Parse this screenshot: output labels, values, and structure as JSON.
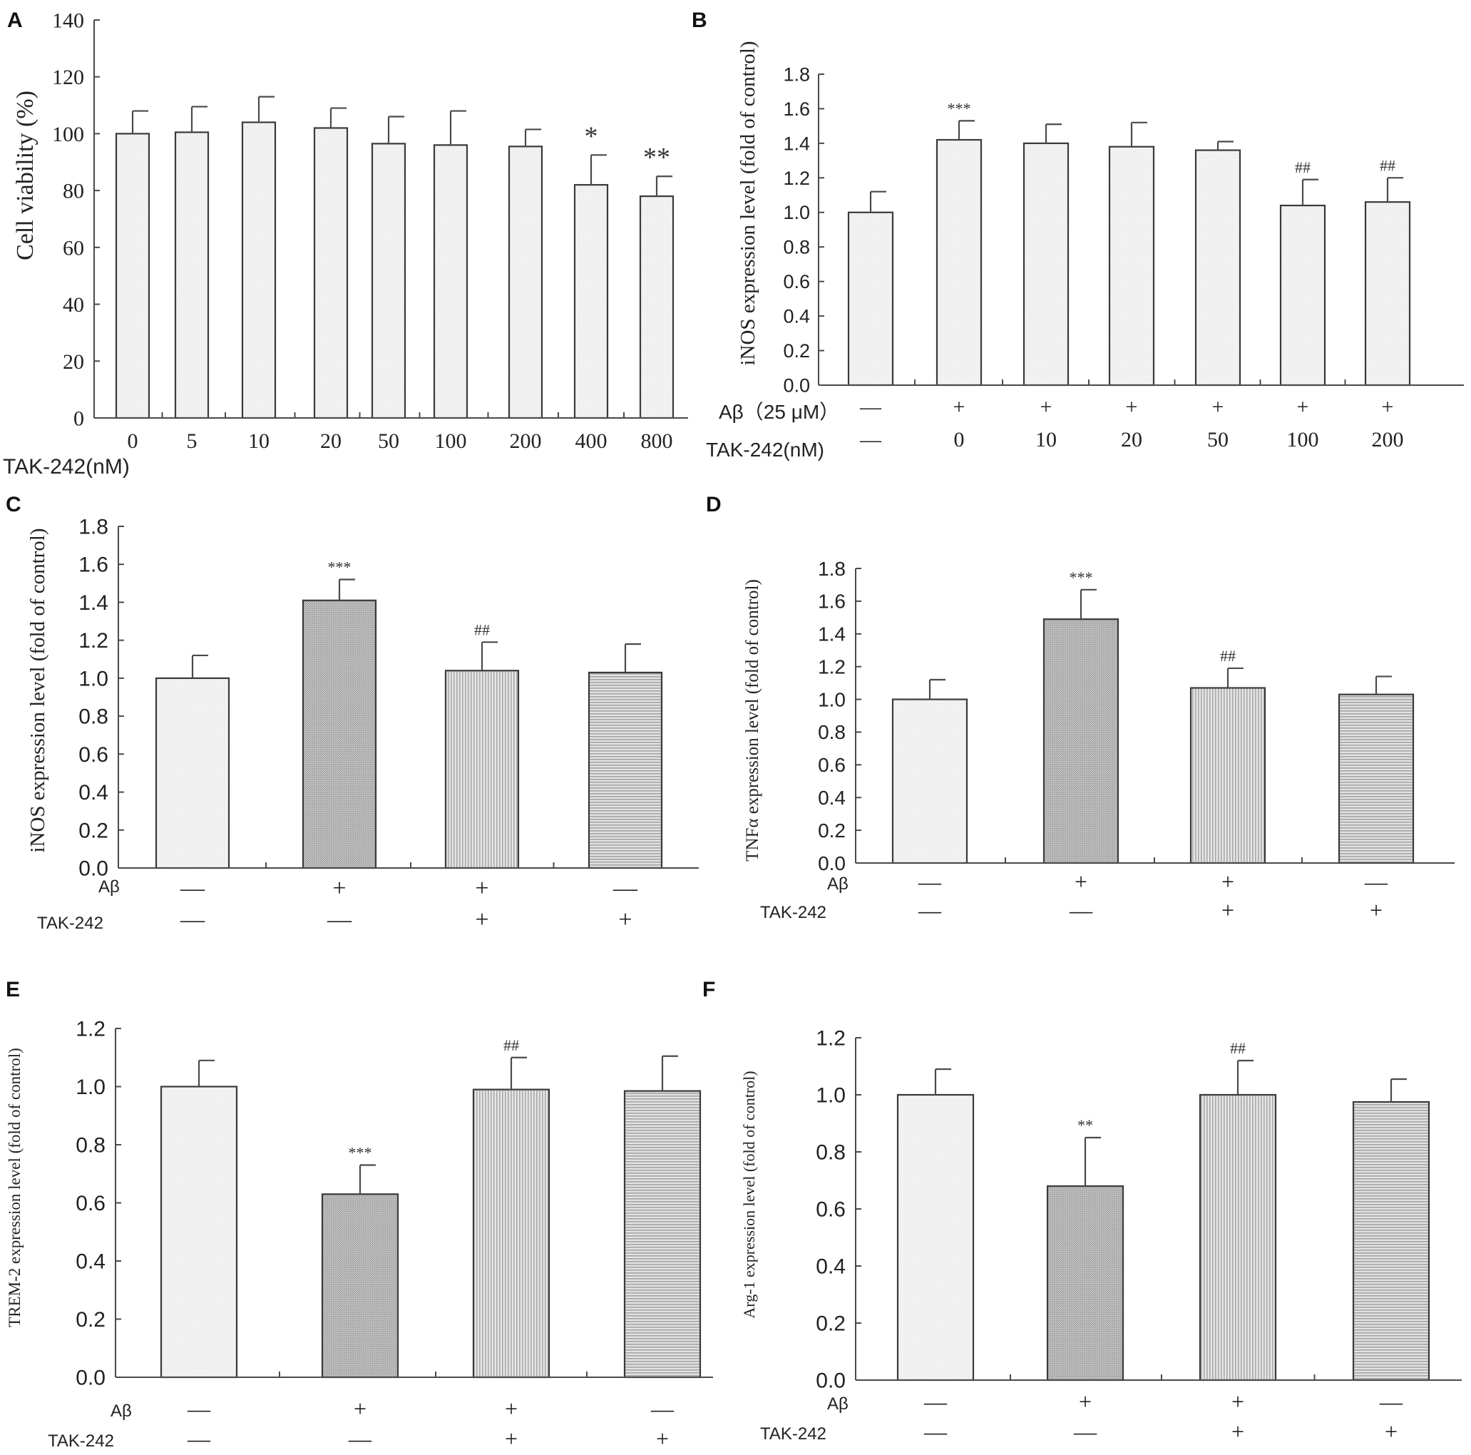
{
  "colors": {
    "bar_light": "#f2f2f2",
    "bar_dark": "#b8b8b8",
    "bar_vstripe": "#c7c7c7",
    "bar_hstripe": "#c2c2c2",
    "axis": "#4a4a4a",
    "text": "#222222"
  },
  "panels": {
    "A": {
      "letter": "A",
      "ylabel": "Cell viability (%)",
      "xlabel": "TAK-242(nM)",
      "yticks": [
        "0",
        "20",
        "40",
        "60",
        "80",
        "100",
        "120",
        "140"
      ],
      "ylim": [
        0,
        140
      ],
      "categories": [
        "0",
        "5",
        "10",
        "20",
        "50",
        "100",
        "200",
        "400",
        "800"
      ],
      "values": [
        100,
        100.5,
        104,
        102,
        96.5,
        96,
        95.5,
        82,
        78
      ],
      "errors": [
        8,
        9,
        9,
        7,
        9.5,
        12,
        6,
        10.5,
        7
      ],
      "marks": [
        "",
        "",
        "",
        "",
        "",
        "",
        "",
        "*",
        "**"
      ]
    },
    "B": {
      "letter": "B",
      "ylabel": "iNOS expression level (fold of control)",
      "yticks": [
        "0.0",
        "0.2",
        "0.4",
        "0.6",
        "0.8",
        "1.0",
        "1.2",
        "1.4",
        "1.6",
        "1.8"
      ],
      "ylim": [
        0,
        1.8
      ],
      "row1_label": "Aβ（25 μM）",
      "row2_label": "TAK-242(nM)",
      "row1": [
        "—",
        "+",
        "+",
        "+",
        "+",
        "+",
        "+"
      ],
      "row2": [
        "—",
        "0",
        "10",
        "20",
        "50",
        "100",
        "200"
      ],
      "values": [
        1.0,
        1.42,
        1.4,
        1.38,
        1.36,
        1.04,
        1.06
      ],
      "errors": [
        0.12,
        0.11,
        0.11,
        0.14,
        0.05,
        0.15,
        0.14
      ],
      "marks": [
        "",
        "***",
        "",
        "",
        "",
        "##",
        "##"
      ]
    },
    "C": {
      "letter": "C",
      "ylabel": "iNOS expression level (fold of control)",
      "yticks": [
        "0.0",
        "0.2",
        "0.4",
        "0.6",
        "0.8",
        "1.0",
        "1.2",
        "1.4",
        "1.6",
        "1.8"
      ],
      "ylim": [
        0,
        1.8
      ],
      "row1_label": "Aβ",
      "row2_label": "TAK-242",
      "row1": [
        "—",
        "+",
        "+",
        "—"
      ],
      "row2": [
        "—",
        "—",
        "+",
        "+"
      ],
      "values": [
        1.0,
        1.41,
        1.04,
        1.03
      ],
      "errors": [
        0.12,
        0.11,
        0.15,
        0.15
      ],
      "marks": [
        "",
        "***",
        "##",
        ""
      ]
    },
    "D": {
      "letter": "D",
      "ylabel": "TNFα expression level (fold of control)",
      "yticks": [
        "0.0",
        "0.2",
        "0.4",
        "0.6",
        "0.8",
        "1.0",
        "1.2",
        "1.4",
        "1.6",
        "1.8"
      ],
      "ylim": [
        0,
        1.8
      ],
      "row1_label": "Aβ",
      "row2_label": "TAK-242",
      "row1": [
        "—",
        "+",
        "+",
        "—"
      ],
      "row2": [
        "—",
        "—",
        "+",
        "+"
      ],
      "values": [
        1.0,
        1.49,
        1.07,
        1.03
      ],
      "errors": [
        0.12,
        0.18,
        0.12,
        0.11
      ],
      "marks": [
        "",
        "***",
        "##",
        ""
      ]
    },
    "E": {
      "letter": "E",
      "ylabel": "TREM-2 expression level (fold of control)",
      "yticks": [
        "0.0",
        "0.2",
        "0.4",
        "0.6",
        "0.8",
        "1.0",
        "1.2"
      ],
      "ylim": [
        0,
        1.2
      ],
      "row1_label": "Aβ",
      "row2_label": "TAK-242",
      "row1": [
        "—",
        "+",
        "+",
        "—"
      ],
      "row2": [
        "—",
        "—",
        "+",
        "+"
      ],
      "values": [
        1.0,
        0.63,
        0.99,
        0.985
      ],
      "errors": [
        0.09,
        0.1,
        0.11,
        0.12
      ],
      "marks": [
        "",
        "***",
        "##",
        ""
      ]
    },
    "F": {
      "letter": "F",
      "ylabel": "Arg-1 expression level (fold of control)",
      "yticks": [
        "0.0",
        "0.2",
        "0.4",
        "0.6",
        "0.8",
        "1.0",
        "1.2"
      ],
      "ylim": [
        0,
        1.2
      ],
      "row1_label": "Aβ",
      "row2_label": "TAK-242",
      "row1": [
        "—",
        "+",
        "+",
        "—"
      ],
      "row2": [
        "—",
        "—",
        "+",
        "+"
      ],
      "values": [
        1.0,
        0.68,
        1.0,
        0.975
      ],
      "errors": [
        0.09,
        0.17,
        0.12,
        0.08
      ],
      "marks": [
        "",
        "**",
        "##",
        ""
      ]
    }
  },
  "chart_data": [
    {
      "panel": "A",
      "type": "bar",
      "title": "",
      "xlabel": "TAK-242(nM)",
      "ylabel": "Cell viability (%)",
      "ylim": [
        0,
        140
      ],
      "categories": [
        "0",
        "5",
        "10",
        "20",
        "50",
        "100",
        "200",
        "400",
        "800"
      ],
      "values": [
        100,
        100.5,
        104,
        102,
        96.5,
        96,
        95.5,
        82,
        78
      ],
      "error": [
        8,
        9,
        9,
        7,
        9.5,
        12,
        6,
        10.5,
        7
      ],
      "annotations": [
        "",
        "",
        "",
        "",
        "",
        "",
        "",
        "*",
        "**"
      ]
    },
    {
      "panel": "B",
      "type": "bar",
      "title": "",
      "xlabel": "Aβ（25 μM） / TAK-242(nM)",
      "ylabel": "iNOS expression level (fold of control)",
      "ylim": [
        0,
        1.8
      ],
      "categories": [
        "— / —",
        "+ / 0",
        "+ / 10",
        "+ / 20",
        "+ / 50",
        "+ / 100",
        "+ / 200"
      ],
      "values": [
        1.0,
        1.42,
        1.4,
        1.38,
        1.36,
        1.04,
        1.06
      ],
      "error": [
        0.12,
        0.11,
        0.11,
        0.14,
        0.05,
        0.15,
        0.14
      ],
      "annotations": [
        "",
        "***",
        "",
        "",
        "",
        "##",
        "##"
      ]
    },
    {
      "panel": "C",
      "type": "bar",
      "title": "",
      "xlabel": "Aβ / TAK-242",
      "ylabel": "iNOS expression level (fold of control)",
      "ylim": [
        0,
        1.8
      ],
      "categories": [
        "— / —",
        "+ / —",
        "+ / +",
        "— / +"
      ],
      "values": [
        1.0,
        1.41,
        1.04,
        1.03
      ],
      "error": [
        0.12,
        0.11,
        0.15,
        0.15
      ],
      "annotations": [
        "",
        "***",
        "##",
        ""
      ]
    },
    {
      "panel": "D",
      "type": "bar",
      "title": "",
      "xlabel": "Aβ / TAK-242",
      "ylabel": "TNFα expression level (fold of control)",
      "ylim": [
        0,
        1.8
      ],
      "categories": [
        "— / —",
        "+ / —",
        "+ / +",
        "— / +"
      ],
      "values": [
        1.0,
        1.49,
        1.07,
        1.03
      ],
      "error": [
        0.12,
        0.18,
        0.12,
        0.11
      ],
      "annotations": [
        "",
        "***",
        "##",
        ""
      ]
    },
    {
      "panel": "E",
      "type": "bar",
      "title": "",
      "xlabel": "Aβ / TAK-242",
      "ylabel": "TREM-2 expression level (fold of control)",
      "ylim": [
        0,
        1.2
      ],
      "categories": [
        "— / —",
        "+ / —",
        "+ / +",
        "— / +"
      ],
      "values": [
        1.0,
        0.63,
        0.99,
        0.985
      ],
      "error": [
        0.09,
        0.1,
        0.11,
        0.12
      ],
      "annotations": [
        "",
        "***",
        "##",
        ""
      ]
    },
    {
      "panel": "F",
      "type": "bar",
      "title": "",
      "xlabel": "Aβ / TAK-242",
      "ylabel": "Arg-1 expression level (fold of control)",
      "ylim": [
        0,
        1.2
      ],
      "categories": [
        "— / —",
        "+ / —",
        "+ / +",
        "— / +"
      ],
      "values": [
        1.0,
        0.68,
        1.0,
        0.975
      ],
      "error": [
        0.09,
        0.17,
        0.12,
        0.08
      ],
      "annotations": [
        "",
        "**",
        "##",
        ""
      ]
    }
  ]
}
